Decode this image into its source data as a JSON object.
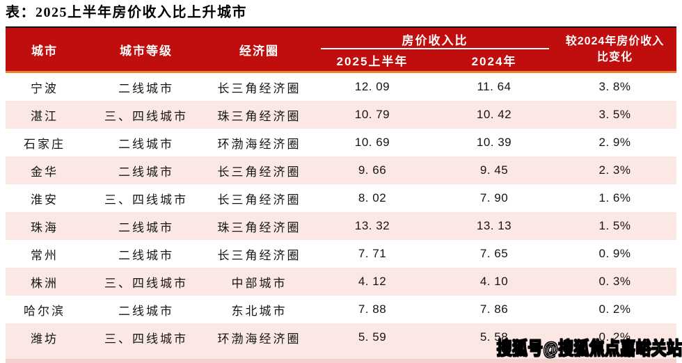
{
  "page": {
    "title": "表：2025上半年房价收入比上升城市"
  },
  "colors": {
    "header_bg": "#C00D0D",
    "accent_line": "#E5812C",
    "row_alt_bg": "#FBE8E5",
    "top_border": "#101010"
  },
  "table": {
    "headers": {
      "city": "城市",
      "tier": "城市等级",
      "circle": "经济圈",
      "ratio_group": "房价收入比",
      "h2025": "2025上半年",
      "h2024": "2024年",
      "change_line1": "较2024年房价收入",
      "change_line2": "比变化"
    },
    "rows": [
      {
        "city": "宁波",
        "tier": "二线城市",
        "circle": "长三角经济圈",
        "r2025": "12. 09",
        "r2024": "11. 64",
        "change": "3. 8%"
      },
      {
        "city": "湛江",
        "tier": "三、四线城市",
        "circle": "珠三角经济圈",
        "r2025": "10. 79",
        "r2024": "10. 42",
        "change": "3. 5%"
      },
      {
        "city": "石家庄",
        "tier": "二线城市",
        "circle": "环渤海经济圈",
        "r2025": "10. 69",
        "r2024": "10. 39",
        "change": "2. 9%"
      },
      {
        "city": "金华",
        "tier": "二线城市",
        "circle": "长三角经济圈",
        "r2025": "9. 66",
        "r2024": "9. 45",
        "change": "2. 3%"
      },
      {
        "city": "淮安",
        "tier": "三、四线城市",
        "circle": "长三角经济圈",
        "r2025": "8. 02",
        "r2024": "7. 90",
        "change": "1. 6%"
      },
      {
        "city": "珠海",
        "tier": "二线城市",
        "circle": "珠三角经济圈",
        "r2025": "13. 32",
        "r2024": "13. 13",
        "change": "1. 5%"
      },
      {
        "city": "常州",
        "tier": "二线城市",
        "circle": "长三角经济圈",
        "r2025": "7. 71",
        "r2024": "7. 65",
        "change": "0. 9%"
      },
      {
        "city": "株洲",
        "tier": "三、四线城市",
        "circle": "中部城市",
        "r2025": "4. 12",
        "r2024": "4. 10",
        "change": "0. 3%"
      },
      {
        "city": "哈尔滨",
        "tier": "二线城市",
        "circle": "东北城市",
        "r2025": "7. 88",
        "r2024": "7. 86",
        "change": "0. 2%"
      },
      {
        "city": "潍坊",
        "tier": "三、四线城市",
        "circle": "环渤海经济圈",
        "r2025": "5. 59",
        "r2024": "5. 58",
        "change": "0. 2%"
      }
    ]
  },
  "watermark": {
    "text": "搜狐号@搜狐焦点嘉峪关站"
  },
  "chart_data": {
    "type": "table",
    "title": "表：2025上半年房价收入比上升城市",
    "columns": [
      "城市",
      "城市等级",
      "经济圈",
      "房价收入比-2025上半年",
      "房价收入比-2024年",
      "较2024年房价收入比变化"
    ],
    "rows": [
      [
        "宁波",
        "二线城市",
        "长三角经济圈",
        12.09,
        11.64,
        "3.8%"
      ],
      [
        "湛江",
        "三、四线城市",
        "珠三角经济圈",
        10.79,
        10.42,
        "3.5%"
      ],
      [
        "石家庄",
        "二线城市",
        "环渤海经济圈",
        10.69,
        10.39,
        "2.9%"
      ],
      [
        "金华",
        "二线城市",
        "长三角经济圈",
        9.66,
        9.45,
        "2.3%"
      ],
      [
        "淮安",
        "三、四线城市",
        "长三角经济圈",
        8.02,
        7.9,
        "1.6%"
      ],
      [
        "珠海",
        "二线城市",
        "珠三角经济圈",
        13.32,
        13.13,
        "1.5%"
      ],
      [
        "常州",
        "二线城市",
        "长三角经济圈",
        7.71,
        7.65,
        "0.9%"
      ],
      [
        "株洲",
        "三、四线城市",
        "中部城市",
        4.12,
        4.1,
        "0.3%"
      ],
      [
        "哈尔滨",
        "二线城市",
        "东北城市",
        7.88,
        7.86,
        "0.2%"
      ],
      [
        "潍坊",
        "三、四线城市",
        "环渤海经济圈",
        5.59,
        5.58,
        "0.2%"
      ]
    ]
  }
}
